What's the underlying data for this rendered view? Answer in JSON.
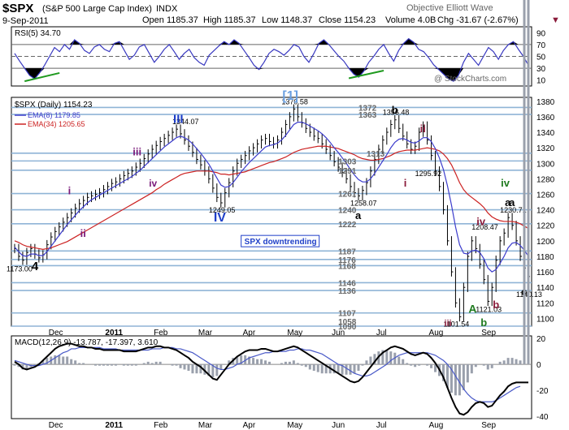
{
  "header": {
    "symbol": "$SPX",
    "name": "(S&P 500 Large Cap Index)",
    "exchange": "INDX",
    "site": "Objective Elliott Wave",
    "date": "9-Sep-2011",
    "open": "Open 1185.37",
    "high": "High 1185.37",
    "low": "Low 1148.37",
    "close": "Close 1154.23",
    "volume": "Volume 4.0B",
    "chg": "Chg -31.67 (-2.67%)",
    "watermark": "@ StockCharts.com"
  },
  "colors": {
    "price_bars": "#000000",
    "ema8": "#3c3ccc",
    "ema34": "#cc2222",
    "levels": "#8fb4d6",
    "rsi_line": "#3838c0",
    "macd_line": "#000000",
    "signal_line": "#4a5ac8",
    "histogram": "#9aa0ac",
    "wave_blue": "#1f3fc8",
    "wave_purple": "#7a1a7a",
    "wave_green": "#1f7a1f",
    "wave_maroon": "#8a1a3a",
    "wave_lightblue": "#6a9fe0"
  },
  "chart_data": [
    {
      "type": "line",
      "panel": "rsi",
      "title": "RSI(5) 34.70",
      "ylim": [
        0,
        100
      ],
      "ticks": [
        10,
        30,
        50,
        70,
        90
      ],
      "reference_lines": [
        30,
        50,
        70
      ],
      "values": [
        55,
        42,
        30,
        18,
        12,
        22,
        35,
        50,
        65,
        58,
        70,
        62,
        78,
        72,
        60,
        55,
        66,
        70,
        62,
        58,
        72,
        75,
        60,
        45,
        52,
        66,
        70,
        55,
        40,
        50,
        62,
        70,
        58,
        45,
        55,
        62,
        48,
        40,
        35,
        52,
        60,
        68,
        75,
        70,
        78,
        72,
        60,
        48,
        35,
        28,
        40,
        55,
        62,
        58,
        52,
        60,
        70,
        66,
        50,
        40,
        55,
        72,
        78,
        70,
        60,
        50,
        42,
        30,
        20,
        15,
        25,
        40,
        50,
        62,
        70,
        55,
        42,
        60,
        72,
        80,
        74,
        62,
        58,
        48,
        36,
        28,
        20,
        12,
        8,
        18,
        40,
        55,
        45,
        35,
        50,
        65,
        58,
        45,
        60,
        70,
        75,
        62,
        50,
        35
      ]
    },
    {
      "type": "line",
      "panel": "price",
      "title": "$SPX (Daily) 1154.23",
      "ylim": [
        1090,
        1385
      ],
      "ticks": [
        1100,
        1120,
        1140,
        1160,
        1180,
        1200,
        1220,
        1240,
        1260,
        1280,
        1300,
        1320,
        1340,
        1360,
        1380
      ],
      "x_labels": [
        "Dec",
        "2011",
        "Feb",
        "Mar",
        "Apr",
        "May",
        "Jun",
        "Jul",
        "Aug",
        "Sep"
      ],
      "legend": [
        {
          "name": "EMA(8) 1179.85"
        },
        {
          "name": "EMA(34) 1205.65"
        }
      ],
      "values": [
        1190,
        1180,
        1175,
        1185,
        1190,
        1183,
        1178,
        1182,
        1195,
        1205,
        1212,
        1218,
        1224,
        1230,
        1236,
        1242,
        1248,
        1252,
        1256,
        1258,
        1260,
        1262,
        1266,
        1270,
        1274,
        1276,
        1280,
        1284,
        1287,
        1290,
        1295,
        1300,
        1306,
        1312,
        1318,
        1323,
        1328,
        1332,
        1336,
        1340,
        1344,
        1338,
        1330,
        1322,
        1314,
        1305,
        1298,
        1290,
        1280,
        1268,
        1256,
        1249,
        1262,
        1275,
        1290,
        1300,
        1305,
        1310,
        1316,
        1320,
        1325,
        1330,
        1332,
        1328,
        1325,
        1330,
        1340,
        1350,
        1360,
        1370,
        1360,
        1352,
        1345,
        1340,
        1335,
        1332,
        1325,
        1318,
        1310,
        1302,
        1295,
        1288,
        1280,
        1270,
        1262,
        1258,
        1265,
        1275,
        1290,
        1305,
        1318,
        1330,
        1340,
        1350,
        1356,
        1345,
        1335,
        1325,
        1318,
        1322,
        1340,
        1348,
        1330,
        1310,
        1290,
        1270,
        1240,
        1200,
        1160,
        1120,
        1102,
        1140,
        1180,
        1200,
        1190,
        1170,
        1150,
        1122,
        1140,
        1175,
        1200,
        1210,
        1230,
        1220,
        1200,
        1180,
        1165,
        1154
      ],
      "ema8": [
        1192,
        1186,
        1181,
        1180,
        1183,
        1183,
        1181,
        1181,
        1186,
        1193,
        1200,
        1207,
        1214,
        1221,
        1227,
        1233,
        1239,
        1244,
        1249,
        1253,
        1256,
        1259,
        1262,
        1265,
        1268,
        1271,
        1274,
        1277,
        1280,
        1283,
        1287,
        1291,
        1296,
        1301,
        1306,
        1311,
        1316,
        1321,
        1325,
        1329,
        1333,
        1335,
        1333,
        1330,
        1325,
        1319,
        1313,
        1306,
        1299,
        1290,
        1281,
        1272,
        1269,
        1270,
        1275,
        1282,
        1289,
        1295,
        1301,
        1306,
        1311,
        1316,
        1321,
        1323,
        1324,
        1326,
        1330,
        1336,
        1343,
        1350,
        1353,
        1353,
        1351,
        1348,
        1345,
        1342,
        1338,
        1333,
        1327,
        1320,
        1314,
        1307,
        1300,
        1292,
        1285,
        1279,
        1276,
        1276,
        1280,
        1287,
        1295,
        1303,
        1311,
        1320,
        1327,
        1331,
        1332,
        1330,
        1327,
        1326,
        1329,
        1333,
        1333,
        1328,
        1319,
        1307,
        1292,
        1271,
        1246,
        1218,
        1195,
        1184,
        1183,
        1187,
        1188,
        1185,
        1177,
        1165,
        1160,
        1163,
        1171,
        1180,
        1191,
        1197,
        1198,
        1194,
        1188,
        1180
      ],
      "ema34": [
        1200,
        1198,
        1195,
        1193,
        1192,
        1191,
        1190,
        1189,
        1190,
        1191,
        1193,
        1195,
        1197,
        1199,
        1202,
        1205,
        1208,
        1211,
        1214,
        1217,
        1220,
        1223,
        1226,
        1229,
        1232,
        1235,
        1238,
        1241,
        1244,
        1247,
        1250,
        1253,
        1256,
        1259,
        1262,
        1266,
        1269,
        1273,
        1276,
        1279,
        1282,
        1285,
        1287,
        1288,
        1289,
        1290,
        1290,
        1290,
        1290,
        1289,
        1288,
        1286,
        1286,
        1285,
        1286,
        1287,
        1288,
        1289,
        1291,
        1293,
        1295,
        1297,
        1299,
        1301,
        1302,
        1304,
        1306,
        1308,
        1311,
        1314,
        1316,
        1318,
        1319,
        1320,
        1321,
        1322,
        1322,
        1322,
        1321,
        1320,
        1319,
        1317,
        1315,
        1313,
        1311,
        1308,
        1306,
        1305,
        1304,
        1304,
        1305,
        1306,
        1308,
        1310,
        1313,
        1315,
        1316,
        1317,
        1317,
        1317,
        1318,
        1319,
        1320,
        1319,
        1318,
        1316,
        1312,
        1306,
        1298,
        1287,
        1275,
        1266,
        1260,
        1256,
        1252,
        1248,
        1243,
        1236,
        1231,
        1228,
        1226,
        1225,
        1225,
        1225,
        1224,
        1222,
        1219,
        1216
      ],
      "levels": [
        1058,
        1090,
        1107,
        1136,
        1146,
        1168,
        1176,
        1187,
        1222,
        1240,
        1261,
        1291,
        1303,
        1313,
        1363,
        1372
      ],
      "price_labels": [
        "1173.00",
        "1249.05",
        "1344.07",
        "1370.58",
        "1258.07",
        "1356.48",
        "1295.92",
        "1101.54",
        "1121.03",
        "1208.47",
        "1230.71",
        "1140.13"
      ],
      "wave_labels": [
        "III",
        "IV",
        "[1]",
        "b",
        "a",
        "i",
        "ii",
        "iii",
        "iv",
        "i",
        "ii",
        "iii",
        "iv",
        "a",
        "b",
        "A",
        "b",
        "c",
        "iv",
        "a",
        "4"
      ],
      "annotation": "SPX downtrending"
    },
    {
      "type": "line",
      "panel": "macd",
      "title": "MACD(12,26,9) -13.787, -17.397, 3.610",
      "ylim": [
        -42,
        22
      ],
      "ticks": [
        -40,
        -20,
        0,
        20
      ],
      "x_labels": [
        "Dec",
        "2011",
        "Feb",
        "Mar",
        "Apr",
        "May",
        "Jun",
        "Jul",
        "Aug",
        "Sep"
      ],
      "macd": [
        2,
        0,
        -3,
        -4,
        -3,
        -2,
        0,
        3,
        6,
        9,
        12,
        14,
        15,
        16,
        16,
        15,
        14,
        14,
        13,
        13,
        12,
        12,
        11,
        11,
        11,
        11,
        11,
        10,
        10,
        10,
        10,
        11,
        12,
        13,
        13,
        14,
        14,
        13,
        13,
        12,
        11,
        9,
        7,
        5,
        2,
        0,
        -2,
        -5,
        -8,
        -11,
        -12,
        -8,
        -4,
        0,
        3,
        6,
        8,
        10,
        11,
        11,
        11,
        12,
        12,
        11,
        10,
        10,
        11,
        12,
        13,
        14,
        13,
        11,
        9,
        7,
        5,
        3,
        1,
        -1,
        -3,
        -5,
        -7,
        -9,
        -11,
        -13,
        -14,
        -13,
        -10,
        -6,
        -2,
        2,
        6,
        9,
        11,
        13,
        14,
        13,
        12,
        10,
        8,
        7,
        8,
        9,
        8,
        5,
        1,
        -4,
        -10,
        -18,
        -26,
        -33,
        -38,
        -39,
        -37,
        -33,
        -30,
        -29,
        -30,
        -33,
        -32,
        -28,
        -24,
        -21,
        -17,
        -15,
        -14,
        -14,
        -14,
        -14
      ],
      "signal": [
        3,
        2,
        1,
        0,
        -1,
        -1,
        -1,
        0,
        1,
        3,
        5,
        7,
        9,
        10,
        12,
        12,
        13,
        13,
        13,
        13,
        13,
        13,
        12,
        12,
        12,
        12,
        11,
        11,
        11,
        11,
        11,
        11,
        11,
        11,
        12,
        12,
        12,
        13,
        13,
        13,
        12,
        12,
        11,
        10,
        9,
        7,
        5,
        3,
        1,
        -1,
        -3,
        -4,
        -4,
        -3,
        -2,
        0,
        1,
        3,
        5,
        6,
        7,
        8,
        9,
        9,
        10,
        10,
        10,
        10,
        11,
        11,
        12,
        12,
        11,
        11,
        10,
        9,
        8,
        6,
        4,
        2,
        0,
        -1,
        -3,
        -5,
        -7,
        -8,
        -9,
        -9,
        -8,
        -6,
        -4,
        -2,
        0,
        3,
        5,
        7,
        8,
        9,
        9,
        9,
        9,
        9,
        9,
        8,
        7,
        5,
        3,
        0,
        -4,
        -9,
        -14,
        -19,
        -23,
        -26,
        -28,
        -29,
        -29,
        -29,
        -29,
        -28,
        -26,
        -24,
        -22,
        -20,
        -18,
        -17
      ]
    }
  ]
}
